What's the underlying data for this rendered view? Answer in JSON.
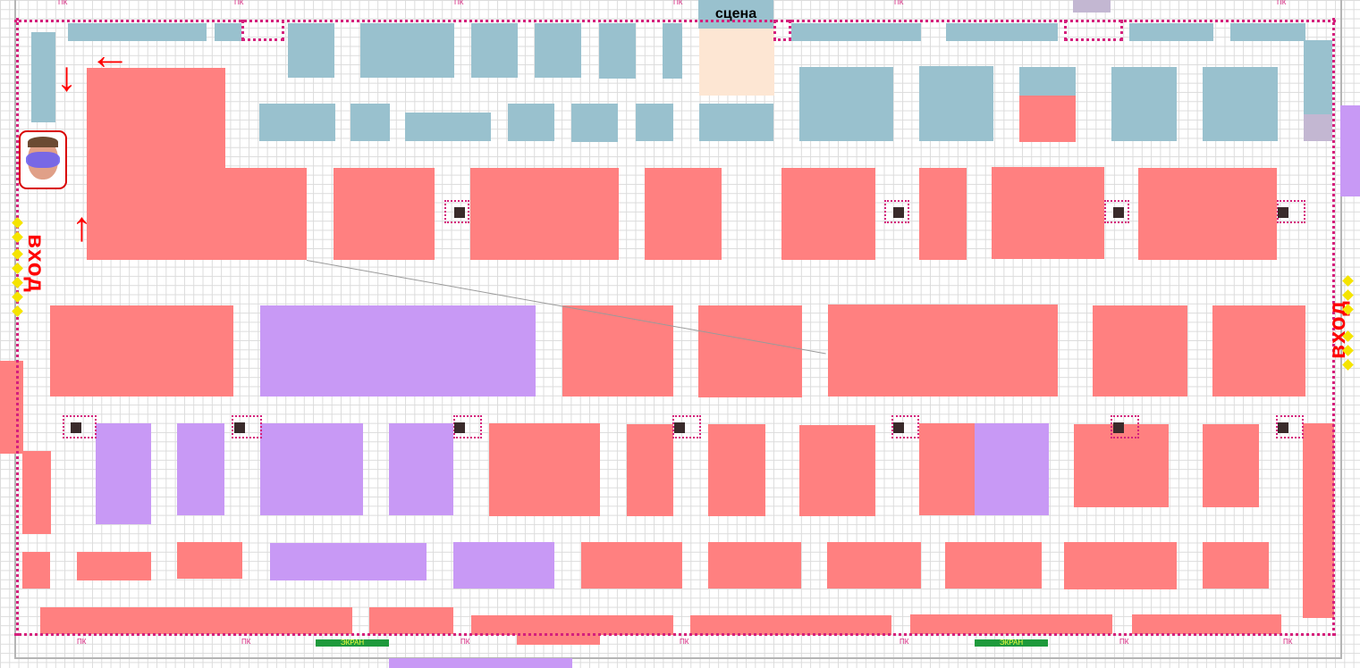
{
  "labels": {
    "stage": "сцена",
    "entrance_left": "вход",
    "entrance_right": "вход",
    "pk": "ПК",
    "screen": "ЭКРАН"
  },
  "colors": {
    "exhibitor_booth": "#ff8080",
    "service_zone": "#99c1ce",
    "partner_zone": "#c899f5",
    "stage_area": "#fde6d3",
    "walking_path": "#d51f7c",
    "arrow": "#ff0000",
    "entrance_marker": "#f5e400",
    "screen": "#1e9a3c"
  },
  "icons": {
    "arrow_left": "arrow-left-icon",
    "arrow_down": "arrow-down-icon",
    "arrow_up": "arrow-up-icon",
    "visitor_avatar": "face-icon",
    "column": "column-icon"
  }
}
